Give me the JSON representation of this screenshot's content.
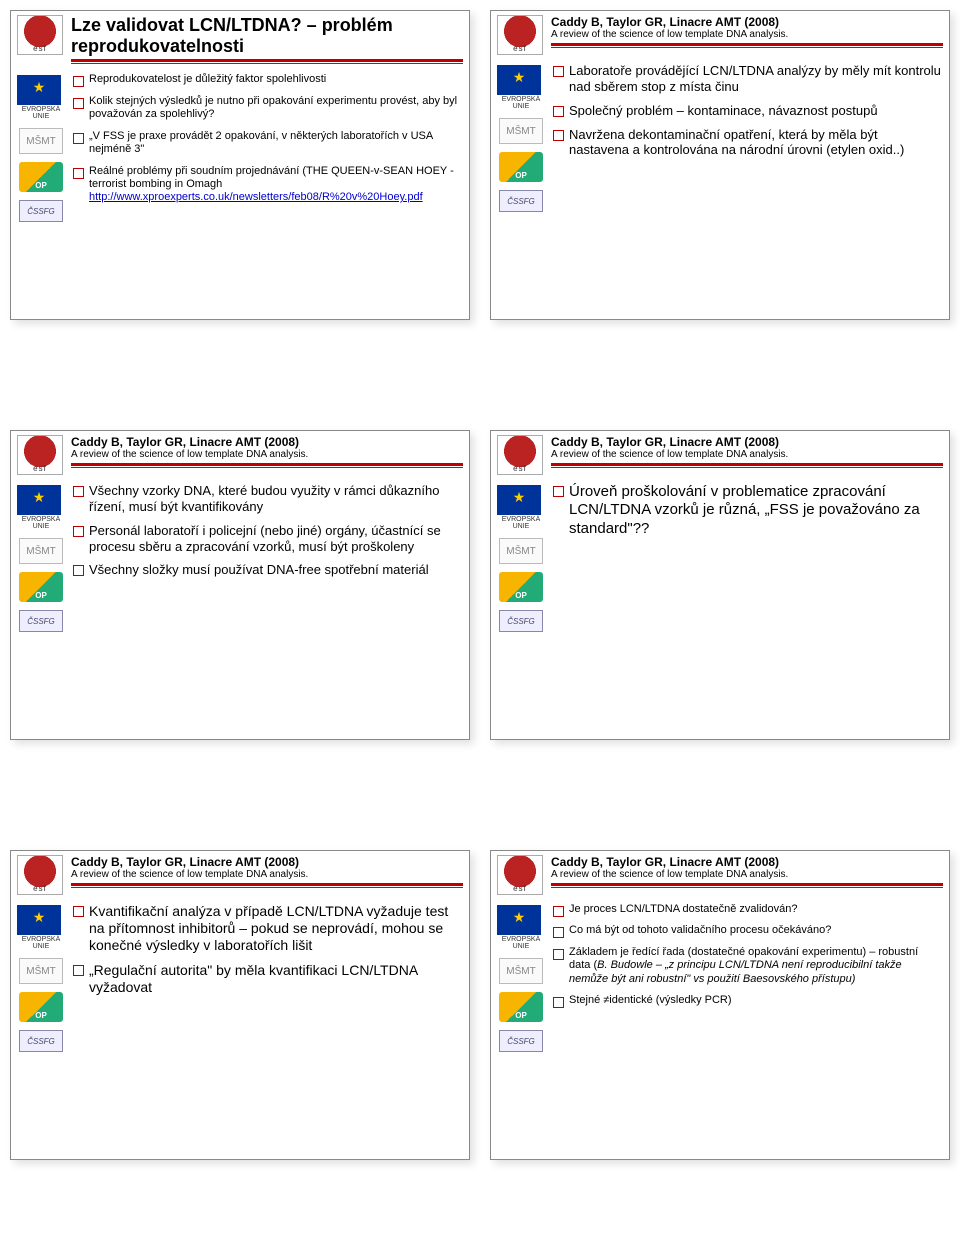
{
  "slides": [
    {
      "title": "Lze validovat LCN/LTDNA? – problém reprodukovatelnosti",
      "title_fontsize": 18,
      "subtitle": "",
      "bullet_fontsize": 11,
      "bullets": [
        {
          "text": "Reprodukovatelost je důležitý faktor spolehlivosti"
        },
        {
          "text": "Kolik stejných výsledků je nutno při opakování experimentu provést, aby byl považován za spolehlivý?"
        },
        {
          "text": "„V FSS je praxe provádět 2 opakování, v některých laboratořích v USA nejméně 3\""
        },
        {
          "text": "Reálné problémy při soudním projednávání (THE QUEEN-v-SEAN HOEY - terrorist bombing in Omagh",
          "link": "http://www.xproexperts.co.uk/newsletters/feb08/R%20v%20Hoey.pdf"
        }
      ]
    },
    {
      "title": "Caddy B, Taylor GR, Linacre AMT (2008)",
      "title_fontsize": 12,
      "subtitle": "A review of the science of low template DNA analysis.",
      "bullet_fontsize": 13,
      "bullets": [
        {
          "text": "Laboratoře provádějící LCN/LTDNA analýzy by měly mít kontrolu nad sběrem stop z místa činu"
        },
        {
          "text": "Společný problém – kontaminace, návaznost postupů"
        },
        {
          "text": "Navržena dekontaminační opatření, která by měla být nastavena a kontrolována na národní úrovni (etylen oxid..)"
        }
      ]
    },
    {
      "title": "Caddy B, Taylor GR, Linacre AMT (2008)",
      "title_fontsize": 12,
      "subtitle": "A review of the science of low template DNA analysis.",
      "bullet_fontsize": 13,
      "bullets": [
        {
          "text": "Všechny vzorky DNA, které budou využity v rámci důkazního řízení, musí být kvantifikovány"
        },
        {
          "text": "Personál laboratoří i policejní (nebo jiné) orgány, účastnící se procesu sběru a zpracování vzorků, musí být proškoleny"
        },
        {
          "text": "Všechny složky musí používat DNA-free spotřební materiál"
        }
      ]
    },
    {
      "title": "Caddy B, Taylor GR, Linacre AMT (2008)",
      "title_fontsize": 12,
      "subtitle": "A review of the science of low template DNA analysis.",
      "bullet_fontsize": 15,
      "bullets": [
        {
          "text": "Úroveň proškolování v problematice zpracování LCN/LTDNA vzorků je různá, „FSS je považováno za standard\"??"
        }
      ]
    },
    {
      "title": "Caddy B, Taylor GR, Linacre AMT (2008)",
      "title_fontsize": 12,
      "subtitle": "A review of the science of low template DNA analysis.",
      "bullet_fontsize": 14,
      "bullets": [
        {
          "text": "Kvantifikační analýza v případě LCN/LTDNA vyžaduje test na přítomnost inhibitorů – pokud se neprovádí, mohou se konečné výsledky v laboratořích lišit"
        },
        {
          "text": "„Regulační autorita\" by měla kvantifikaci LCN/LTDNA vyžadovat"
        }
      ]
    },
    {
      "title": "Caddy B, Taylor GR, Linacre AMT (2008)",
      "title_fontsize": 12,
      "subtitle": "A review of the science of low template DNA analysis.",
      "bullet_fontsize": 11,
      "bullets": [
        {
          "text": "Je proces LCN/LTDNA dostatečně zvalidován?"
        },
        {
          "text": "Co má být od tohoto validačního procesu očekáváno?"
        },
        {
          "text": "Základem je ředící řada (dostatečné opakování experimentu) – robustní data (B. Budowle – „z principu LCN/LTDNA není reproducibilní takže nemůže být ani robustní\" vs použití Baesovského přístupu)",
          "italic_tail": "B. Budowle – „z principu LCN/LTDNA není reproducibilní takže nemůže být ani robustní\" vs použití Baesovského přístupu)"
        },
        {
          "text": "Stejné ≠identické (výsledky PCR)"
        }
      ]
    }
  ],
  "logo_labels": {
    "eu": "EVROPSKÁ UNIE",
    "msmt": "MŠMT",
    "cssfg": "ČSSFG"
  }
}
